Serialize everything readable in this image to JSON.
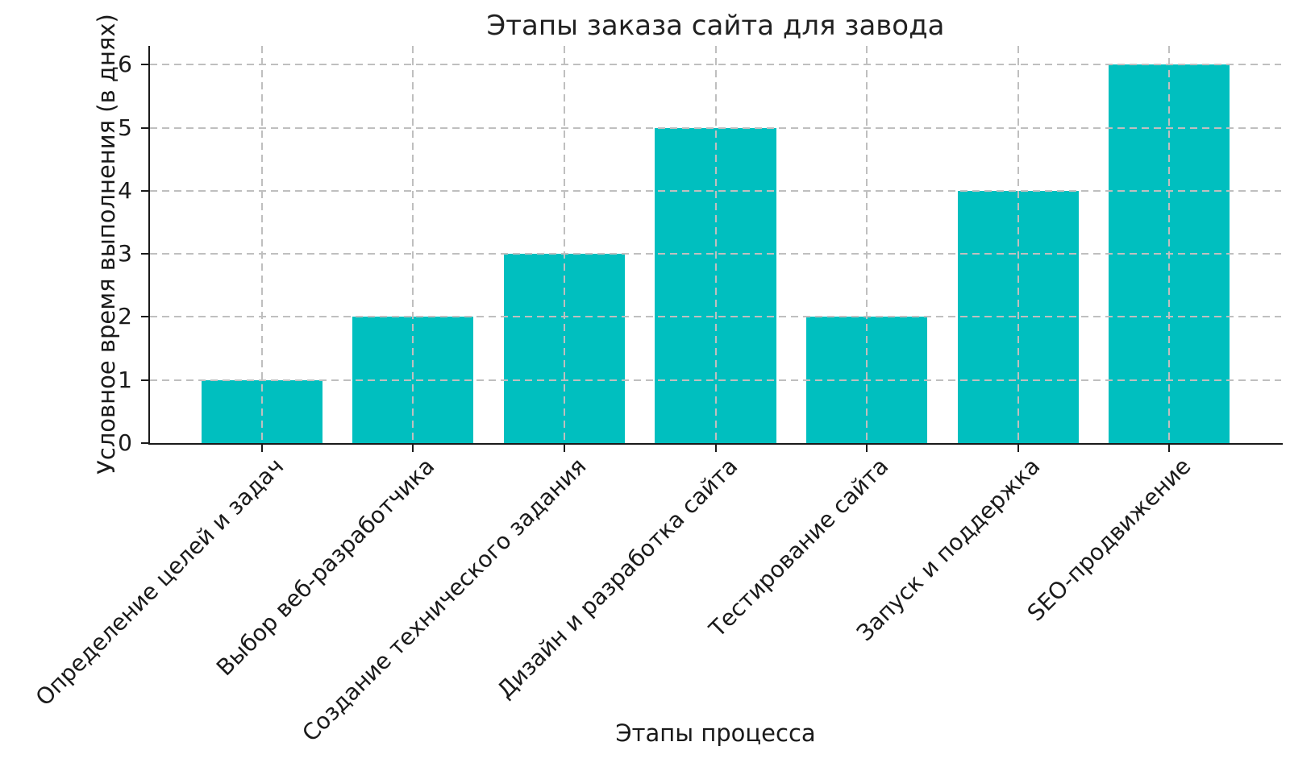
{
  "figure": {
    "background_color": "#ffffff",
    "text_color": "#1a1a1a"
  },
  "chart_data": {
    "type": "bar",
    "title": "Этапы заказа сайта для завода",
    "xlabel": "Этапы процесса",
    "ylabel": "Условное время выполнения (в днях)",
    "categories": [
      "Определение целей и задач",
      "Выбор веб-разработчика",
      "Создание технического задания",
      "Дизайн и разработка сайта",
      "Тестирование сайта",
      "Запуск и поддержка",
      "SEO-продвижение"
    ],
    "values": [
      1,
      2,
      3,
      5,
      2,
      4,
      6
    ],
    "yticks": [
      0,
      1,
      2,
      3,
      4,
      5,
      6
    ],
    "ylim": [
      0,
      6.3
    ],
    "bar_color": "#00bfbf",
    "bar_width_ratio": 0.8,
    "x_tick_rotation_deg": 45,
    "grid": {
      "visible": true,
      "style": "dashed",
      "color": "#b0b0b0",
      "on_top_of_bars": true
    },
    "legend": null
  }
}
